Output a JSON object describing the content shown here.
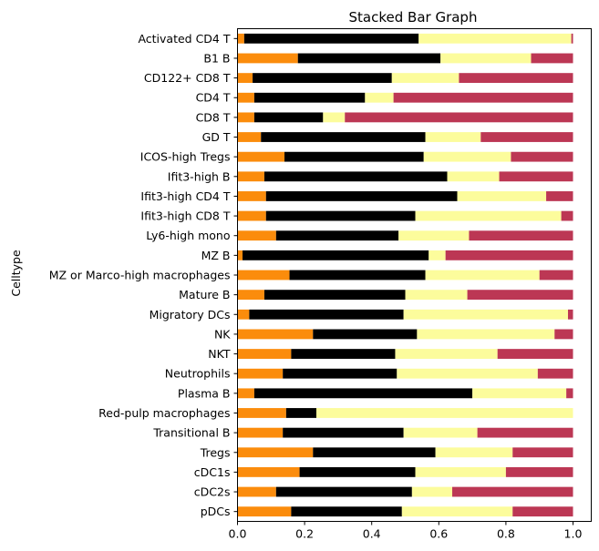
{
  "chart_data": {
    "type": "bar",
    "orientation": "horizontal",
    "stacked": true,
    "title": "Stacked Bar Graph",
    "xlabel": "",
    "ylabel": "Celltype",
    "xlim": [
      0,
      1
    ],
    "xticks": [
      "0.0",
      "0.2",
      "0.4",
      "0.6",
      "0.8",
      "1.0"
    ],
    "grid": false,
    "legend": "none",
    "categories": [
      "Activated CD4 T",
      "B1 B",
      "CD122+ CD8 T",
      "CD4 T",
      "CD8 T",
      "GD T",
      "ICOS-high Tregs",
      "Ifit3-high B",
      "Ifit3-high CD4 T",
      "Ifit3-high CD8 T",
      "Ly6-high mono",
      "MZ B",
      "MZ or Marco-high macrophages",
      "Mature B",
      "Migratory DCs",
      "NK",
      "NKT",
      "Neutrophils",
      "Plasma B",
      "Red-pulp macrophages",
      "Transitional B",
      "Tregs",
      "cDC1s",
      "cDC2s",
      "pDCs"
    ],
    "series": [
      {
        "color": "#fb8c0c",
        "values": [
          0.02,
          0.18,
          0.045,
          0.05,
          0.05,
          0.07,
          0.14,
          0.08,
          0.085,
          0.085,
          0.115,
          0.015,
          0.155,
          0.08,
          0.035,
          0.225,
          0.16,
          0.135,
          0.05,
          0.145,
          0.135,
          0.225,
          0.185,
          0.115,
          0.16
        ]
      },
      {
        "color": "#000000",
        "values": [
          0.52,
          0.425,
          0.415,
          0.33,
          0.205,
          0.49,
          0.415,
          0.545,
          0.57,
          0.445,
          0.365,
          0.555,
          0.405,
          0.42,
          0.46,
          0.31,
          0.31,
          0.34,
          0.65,
          0.09,
          0.36,
          0.365,
          0.345,
          0.405,
          0.33
        ]
      },
      {
        "color": "#fcfc9c",
        "values": [
          0.455,
          0.27,
          0.2,
          0.085,
          0.065,
          0.165,
          0.26,
          0.155,
          0.265,
          0.435,
          0.21,
          0.05,
          0.34,
          0.185,
          0.49,
          0.41,
          0.305,
          0.42,
          0.28,
          0.765,
          0.22,
          0.23,
          0.27,
          0.12,
          0.33
        ]
      },
      {
        "color": "#bc3754",
        "values": [
          0.005,
          0.125,
          0.34,
          0.535,
          0.68,
          0.275,
          0.185,
          0.22,
          0.08,
          0.035,
          0.31,
          0.38,
          0.1,
          0.315,
          0.015,
          0.055,
          0.225,
          0.105,
          0.02,
          0.0,
          0.285,
          0.18,
          0.2,
          0.36,
          0.18
        ]
      }
    ]
  }
}
